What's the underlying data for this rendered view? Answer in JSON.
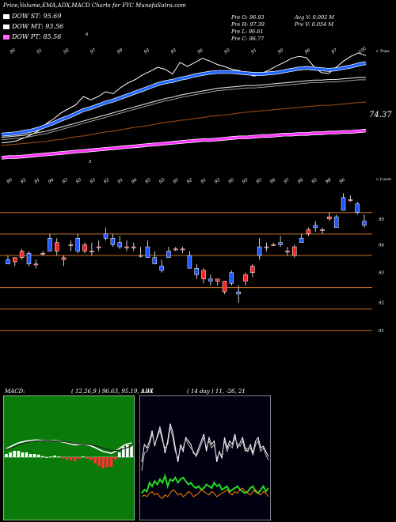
{
  "header": {
    "title": "Price,Volume,EMA,ADX,MACD Charts for FYC MunafaSutra.com"
  },
  "legend": [
    {
      "label": "DOW ST: 95.69",
      "color": "#ffffff"
    },
    {
      "label": "DOW MT: 93.56",
      "color": "#ffffff"
    },
    {
      "label": "DOW PT: 85.56",
      "color": "#ff66ff"
    }
  ],
  "stats": {
    "pre_o": "Pre  O: 96.93",
    "pre_h": "Pre  H: 97.39",
    "pre_l": "Pre  L: 96.61",
    "pre_c": "Pre  C: 96.77",
    "avg_v": "Avg V: 0.002  M",
    "pre_v": "Pre  V: 0.054  M"
  },
  "colors": {
    "up": "#ff2222",
    "down": "#1f55ff",
    "ema_blue": "#1f63ff",
    "ema_magenta": "#ff33ff",
    "ema_brown": "#8b4513",
    "grid": "#c87020",
    "macd_bg": "#0a7a0a",
    "adx_green": "#22dd22",
    "adx_orange": "#ff7f00"
  },
  "chart_data": [
    {
      "type": "line",
      "name": "ema_panel",
      "top_labels": [
        "90",
        "91",
        "93",
        "97",
        "99",
        "93",
        "93",
        "96",
        "93",
        "91",
        "90",
        "96",
        "97",
        "100"
      ],
      "bottom_labels": [
        "5"
      ],
      "axis_label": "74.37",
      "corner_text": "< Topa",
      "series": [
        {
          "name": "price",
          "values": [
            84.0,
            84.1,
            84.3,
            84.7,
            85.2,
            85.8,
            86.8,
            87.5,
            88.4,
            89.0,
            89.6,
            90.8,
            90.3,
            90.8,
            91.5,
            91.2,
            92.1,
            92.8,
            93.3,
            94.0,
            94.5,
            95.1,
            94.8,
            94.1,
            95.8,
            95.2,
            95.8,
            96.4,
            96.0,
            95.5,
            95.2,
            94.8,
            94.6,
            94.1,
            93.8,
            94.2,
            94.7,
            95.3,
            95.8,
            96.4,
            96.7,
            96.5,
            95.2,
            94.3,
            94.2,
            95.1,
            96.0,
            96.7,
            97.2,
            96.8
          ]
        },
        {
          "name": "ema_short",
          "values": [
            85.2,
            85.3,
            85.4,
            85.6,
            85.8,
            86.1,
            86.5,
            86.9,
            87.4,
            87.8,
            88.3,
            88.8,
            89.1,
            89.5,
            89.9,
            90.2,
            90.6,
            91.0,
            91.4,
            91.8,
            92.2,
            92.6,
            92.9,
            93.1,
            93.4,
            93.6,
            93.9,
            94.1,
            94.3,
            94.4,
            94.4,
            94.4,
            94.3,
            94.2,
            94.1,
            94.1,
            94.2,
            94.3,
            94.5,
            94.7,
            94.9,
            95.0,
            94.9,
            94.8,
            94.7,
            94.8,
            95.0,
            95.2,
            95.5,
            95.7
          ]
        },
        {
          "name": "ema_mid",
          "values": [
            84.8,
            84.9,
            85.0,
            85.1,
            85.3,
            85.5,
            85.7,
            86.0,
            86.3,
            86.6,
            86.9,
            87.2,
            87.5,
            87.8,
            88.1,
            88.4,
            88.7,
            89.0,
            89.3,
            89.6,
            89.9,
            90.2,
            90.5,
            90.7,
            91.0,
            91.2,
            91.4,
            91.6,
            91.8,
            92.0,
            92.1,
            92.2,
            92.3,
            92.4,
            92.4,
            92.5,
            92.6,
            92.7,
            92.8,
            92.9,
            93.0,
            93.1,
            93.2,
            93.2,
            93.3,
            93.3,
            93.4,
            93.5,
            93.6,
            93.6
          ]
        },
        {
          "name": "ema_long",
          "values": [
            83.6,
            83.7,
            83.8,
            83.9,
            84.0,
            84.1,
            84.2,
            84.4,
            84.5,
            84.7,
            84.9,
            85.0,
            85.2,
            85.4,
            85.6,
            85.7,
            85.9,
            86.1,
            86.3,
            86.4,
            86.6,
            86.8,
            87.0,
            87.1,
            87.3,
            87.4,
            87.6,
            87.7,
            87.9,
            88.0,
            88.1,
            88.2,
            88.4,
            88.5,
            88.6,
            88.7,
            88.8,
            88.9,
            89.0,
            89.1,
            89.2,
            89.3,
            89.4,
            89.5,
            89.5,
            89.6,
            89.7,
            89.8,
            89.9,
            90.0
          ]
        },
        {
          "name": "ema_pt",
          "values": [
            81.8,
            81.9,
            81.9,
            82.0,
            82.1,
            82.2,
            82.3,
            82.4,
            82.5,
            82.6,
            82.7,
            82.8,
            82.9,
            83.0,
            83.1,
            83.2,
            83.3,
            83.4,
            83.5,
            83.6,
            83.7,
            83.8,
            83.9,
            84.0,
            84.1,
            84.2,
            84.3,
            84.4,
            84.4,
            84.5,
            84.6,
            84.7,
            84.8,
            84.8,
            84.9,
            85.0,
            85.0,
            85.1,
            85.2,
            85.2,
            85.3,
            85.3,
            85.4,
            85.4,
            85.5,
            85.5,
            85.6,
            85.6,
            85.7,
            85.8
          ]
        }
      ]
    },
    {
      "type": "candlestick",
      "name": "price_panel",
      "corner_text": "< Loom",
      "top_labels": [
        "90",
        "92",
        "91",
        "94",
        "93",
        "95",
        "93",
        "92",
        "91",
        "94",
        "95",
        "93",
        "95",
        "92",
        "91",
        "92",
        "90",
        "93",
        "95",
        "96",
        "97",
        "96",
        "95",
        "98",
        "96"
      ],
      "y_ticks": [
        "95",
        "94",
        "93",
        "92",
        "91"
      ],
      "candles": [
        [
          93.8,
          94.0,
          93.6,
          93.6
        ],
        [
          93.7,
          93.9,
          93.5,
          93.9
        ],
        [
          93.9,
          94.3,
          93.8,
          94.2
        ],
        [
          94.1,
          94.2,
          93.5,
          93.6
        ],
        [
          93.6,
          93.8,
          93.4,
          93.6
        ],
        [
          94.1,
          94.2,
          94.0,
          94.1
        ],
        [
          94.8,
          95.0,
          94.2,
          94.2
        ],
        [
          94.2,
          94.8,
          94.0,
          94.6
        ],
        [
          93.8,
          94.0,
          93.5,
          93.9
        ],
        [
          94.5,
          94.7,
          94.2,
          94.5
        ],
        [
          94.8,
          95.0,
          94.1,
          94.2
        ],
        [
          94.2,
          94.6,
          94.1,
          94.5
        ],
        [
          94.2,
          94.6,
          94.0,
          94.2
        ],
        [
          94.4,
          94.7,
          94.2,
          94.4
        ],
        [
          95.0,
          95.3,
          94.7,
          94.8
        ],
        [
          94.8,
          95.0,
          94.4,
          94.5
        ],
        [
          94.6,
          94.9,
          94.3,
          94.4
        ],
        [
          94.4,
          94.7,
          94.2,
          94.4
        ],
        [
          94.4,
          94.6,
          94.2,
          94.4
        ],
        [
          94.0,
          94.4,
          93.9,
          94.0
        ],
        [
          94.4,
          94.7,
          93.9,
          93.9
        ],
        [
          93.9,
          94.2,
          93.6,
          93.6
        ],
        [
          93.5,
          93.8,
          93.2,
          93.3
        ],
        [
          94.2,
          94.4,
          93.9,
          93.9
        ],
        [
          94.3,
          94.4,
          94.2,
          94.3
        ],
        [
          94.3,
          94.4,
          94.1,
          94.3
        ],
        [
          94.0,
          94.2,
          93.4,
          93.4
        ],
        [
          93.4,
          93.6,
          92.9,
          93.1
        ],
        [
          92.9,
          93.4,
          92.7,
          93.3
        ],
        [
          92.9,
          93.1,
          92.6,
          92.8
        ],
        [
          92.8,
          92.9,
          92.6,
          92.9
        ],
        [
          92.3,
          92.8,
          92.2,
          92.8
        ],
        [
          93.2,
          93.3,
          92.6,
          92.7
        ],
        [
          92.3,
          92.6,
          91.8,
          92.2
        ],
        [
          92.8,
          93.2,
          92.6,
          93.1
        ],
        [
          93.2,
          93.6,
          93.0,
          93.5
        ],
        [
          94.4,
          94.8,
          93.8,
          94.0
        ],
        [
          94.4,
          94.6,
          94.2,
          94.4
        ],
        [
          94.5,
          94.6,
          94.5,
          94.5
        ],
        [
          94.6,
          94.9,
          94.4,
          94.5
        ],
        [
          94.2,
          94.4,
          94.0,
          94.2
        ],
        [
          94.0,
          94.5,
          93.9,
          94.4
        ],
        [
          94.8,
          95.0,
          94.6,
          94.6
        ],
        [
          95.0,
          95.3,
          94.9,
          95.2
        ],
        [
          95.4,
          95.6,
          95.1,
          95.3
        ],
        [
          95.2,
          95.3,
          95.0,
          95.2
        ],
        [
          95.7,
          96.0,
          95.6,
          95.8
        ],
        [
          95.8,
          95.9,
          95.3,
          95.3
        ],
        [
          96.7,
          96.9,
          96.1,
          96.1
        ],
        [
          96.6,
          96.8,
          96.5,
          96.6
        ],
        [
          96.4,
          96.5,
          95.9,
          96.0
        ],
        [
          95.6,
          95.9,
          95.3,
          95.4
        ]
      ]
    },
    {
      "type": "line",
      "name": "macd_panel",
      "title": "MACD:",
      "params": "( 12,26,9 ) 96.63,  95.19,  1.44",
      "series": [
        {
          "name": "macd",
          "values": [
            0.9,
            1.1,
            1.3,
            1.5,
            1.6,
            1.7,
            1.75,
            1.8,
            1.8,
            1.75,
            1.7,
            1.72,
            1.75,
            1.7,
            1.6,
            1.5,
            1.4,
            1.3,
            1.35,
            1.4,
            1.3,
            1.2,
            1.0,
            0.8,
            0.6,
            0.5,
            0.4,
            0.6,
            0.9,
            1.2,
            1.4,
            1.5
          ]
        },
        {
          "name": "signal",
          "values": [
            0.8,
            0.95,
            1.1,
            1.3,
            1.45,
            1.55,
            1.65,
            1.7,
            1.72,
            1.72,
            1.7,
            1.7,
            1.7,
            1.68,
            1.64,
            1.58,
            1.5,
            1.43,
            1.4,
            1.38,
            1.35,
            1.3,
            1.2,
            1.08,
            0.95,
            0.82,
            0.7,
            0.68,
            0.75,
            0.88,
            1.02,
            1.15
          ]
        }
      ]
    },
    {
      "type": "line",
      "name": "adx_panel",
      "title": "ADX",
      "params": "( 14 day ) 11,  -26,  21",
      "series": [
        {
          "name": "plus_di",
          "values": [
            30,
            40,
            38,
            42,
            48,
            39,
            45,
            50,
            44,
            35,
            42,
            52,
            47,
            38,
            30,
            40,
            36,
            44,
            42,
            40,
            35,
            34,
            38,
            42,
            46,
            36,
            44,
            40,
            42,
            30,
            36,
            32,
            44,
            38,
            42,
            40,
            46,
            38,
            41,
            44,
            38,
            36,
            40,
            35,
            42,
            44,
            38,
            39,
            36,
            33
          ]
        },
        {
          "name": "minus_di",
          "values": [
            25,
            35,
            36,
            40,
            46,
            40,
            44,
            48,
            42,
            38,
            40,
            50,
            44,
            36,
            32,
            38,
            38,
            43,
            40,
            38,
            36,
            33,
            36,
            40,
            44,
            38,
            42,
            38,
            40,
            32,
            35,
            34,
            42,
            36,
            40,
            38,
            44,
            40,
            39,
            42,
            36,
            38,
            38,
            34,
            40,
            42,
            36,
            38,
            34,
            31
          ]
        },
        {
          "name": "adx",
          "values": [
            12,
            14,
            13,
            18,
            16,
            19,
            17,
            20,
            18,
            22,
            16,
            20,
            19,
            21,
            18,
            20,
            21,
            19,
            17,
            18,
            16,
            15,
            16,
            14,
            15,
            17,
            16,
            15,
            18,
            16,
            17,
            14,
            15,
            16,
            13,
            14,
            15,
            16,
            14,
            13,
            12,
            13,
            15,
            16,
            13,
            12,
            14,
            16,
            13,
            15
          ]
        },
        {
          "name": "adx_alt",
          "values": [
            10,
            11,
            10,
            12,
            13,
            11,
            12,
            10,
            9,
            11,
            10,
            12,
            14,
            13,
            11,
            12,
            10,
            11,
            13,
            12,
            10,
            11,
            12,
            14,
            13,
            12,
            11,
            13,
            12,
            10,
            11,
            12,
            13,
            14,
            12,
            11,
            13,
            12,
            14,
            15,
            13,
            12,
            11,
            13,
            14,
            12,
            11,
            13,
            12,
            10
          ]
        }
      ]
    }
  ]
}
